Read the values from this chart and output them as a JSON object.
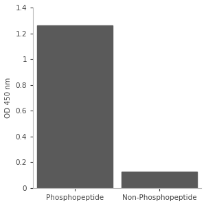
{
  "categories": [
    "Phosphopeptide",
    "Non-Phosphopeptide"
  ],
  "values": [
    1.26,
    0.13
  ],
  "bar_color": "#5a5a5a",
  "ylabel": "OD 450 nm",
  "ylim": [
    0,
    1.4
  ],
  "yticks": [
    0,
    0.2,
    0.4,
    0.6,
    0.8,
    1.0,
    1.2,
    1.4
  ],
  "ytick_labels": [
    "0",
    "0.2",
    "0.4",
    "0.6",
    "0.8",
    "1",
    "1.2",
    "1.4"
  ],
  "bar_width": 0.45,
  "background_color": "#ffffff",
  "label_fontsize": 7.5,
  "tick_fontsize": 7.5,
  "ylabel_fontsize": 7.5,
  "bar_positions": [
    0.25,
    0.75
  ],
  "xlim": [
    0.0,
    1.0
  ],
  "spine_color": "#bbbbbb",
  "text_color": "#444444"
}
